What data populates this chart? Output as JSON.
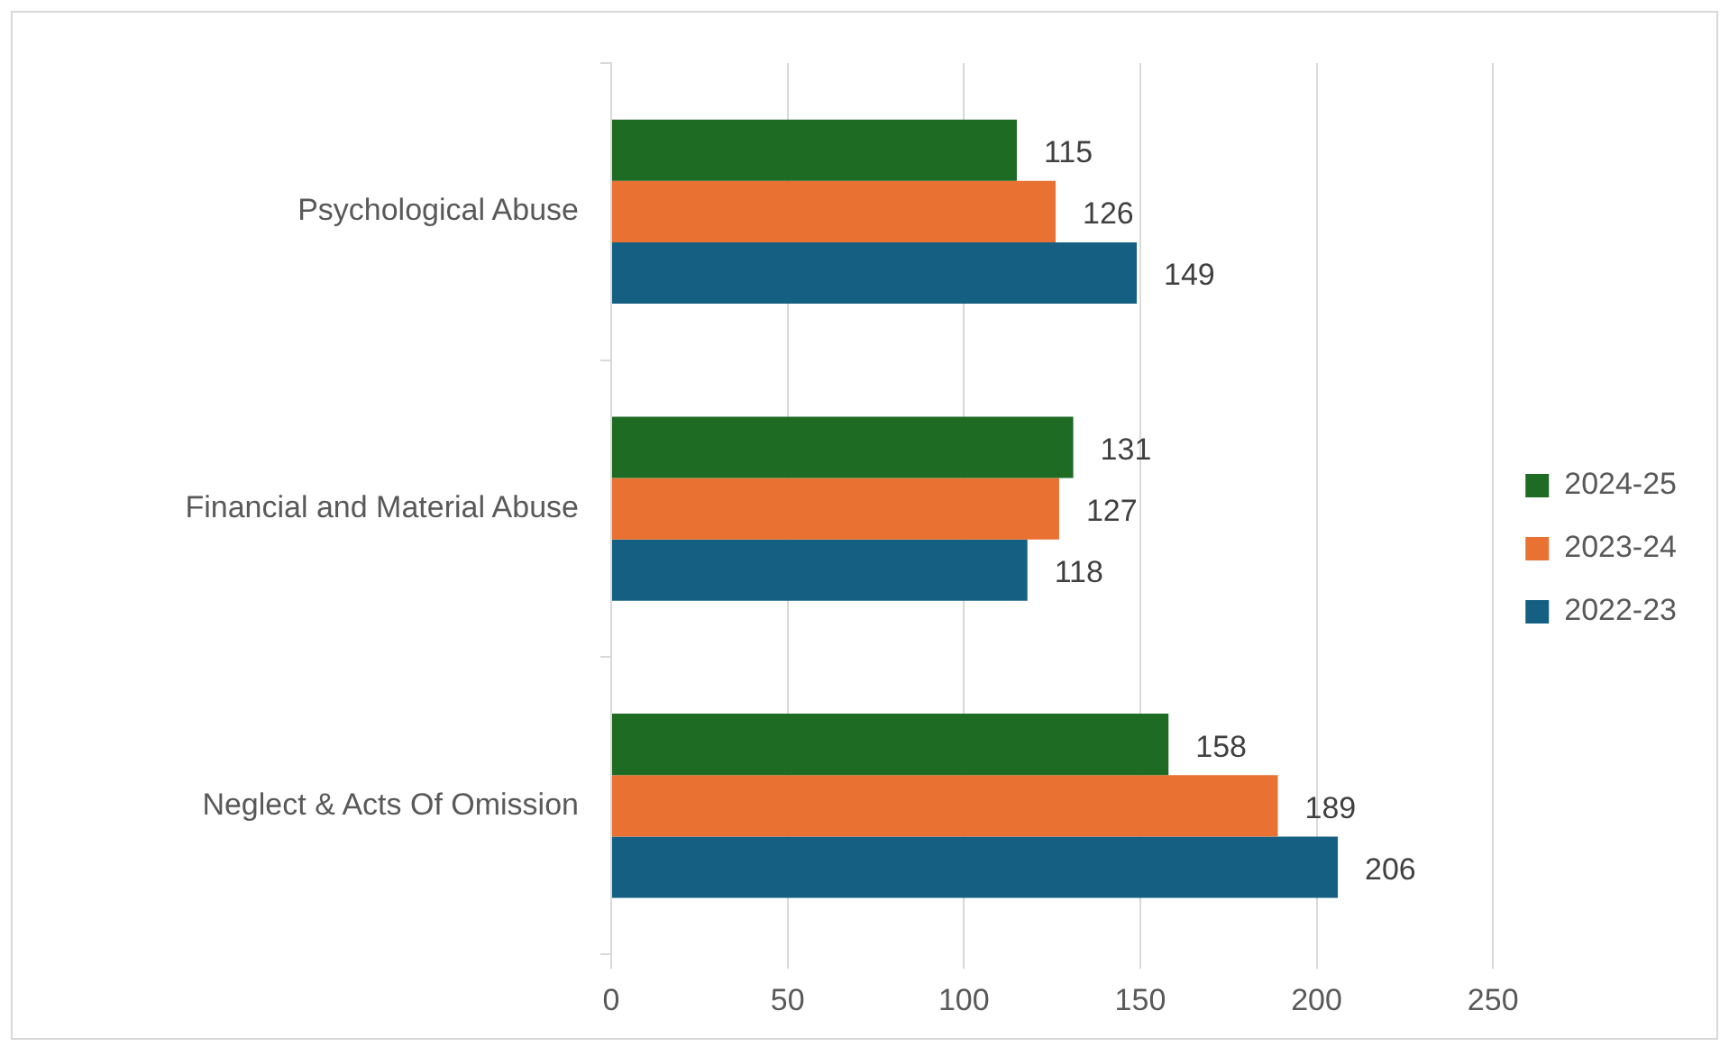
{
  "chart_data": {
    "type": "bar",
    "orientation": "horizontal",
    "categories": [
      "Psychological Abuse",
      "Financial and Material Abuse",
      "Neglect & Acts Of Omission"
    ],
    "series": [
      {
        "name": "2024-25",
        "color": "#1e6b24",
        "values": [
          115,
          131,
          158
        ]
      },
      {
        "name": "2023-24",
        "color": "#e97132",
        "values": [
          126,
          127,
          189
        ]
      },
      {
        "name": "2022-23",
        "color": "#156082",
        "values": [
          149,
          118,
          206
        ]
      }
    ],
    "xlim": [
      0,
      250
    ],
    "xticks": [
      0,
      50,
      100,
      150,
      200,
      250
    ],
    "grid": "x",
    "legend": "right",
    "data_labels": true
  }
}
